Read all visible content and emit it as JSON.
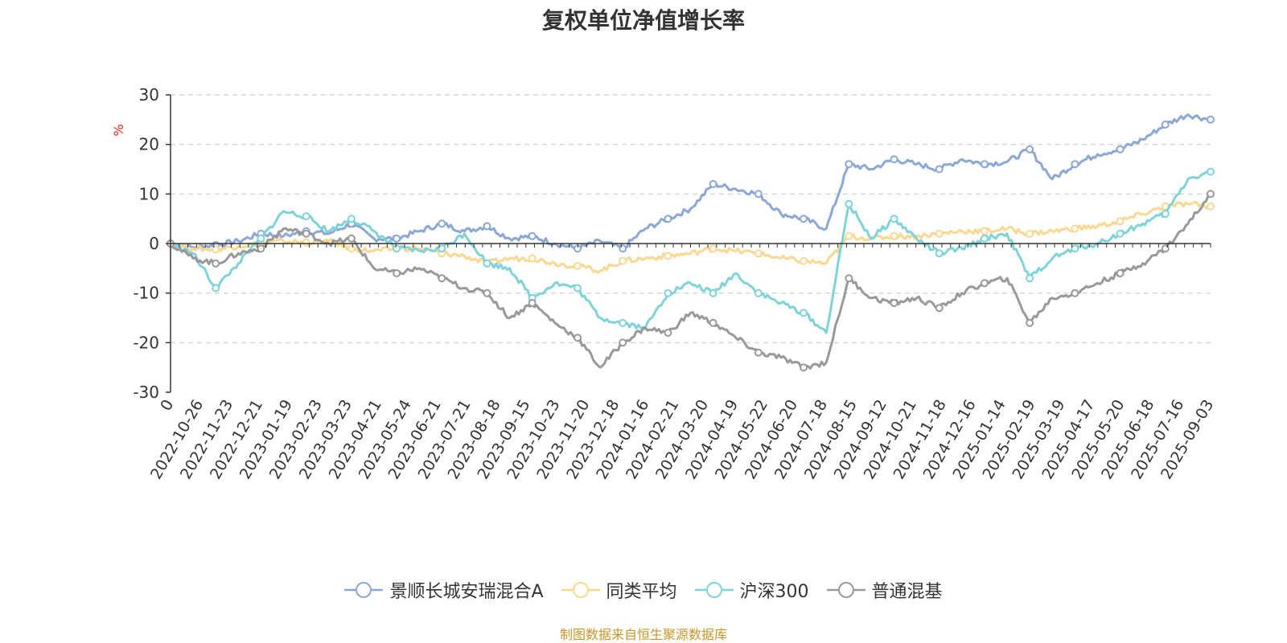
{
  "title": "复权单位净值增长率",
  "ylabel": "%",
  "source_note": "制图数据来自恒生聚源数据库",
  "colors": {
    "axis": "#333333",
    "grid": "#cccccc",
    "ylabel": "#e02020",
    "source": "#c8952a"
  },
  "chart_data": {
    "type": "line",
    "title": "复权单位净值增长率",
    "ylabel": "%",
    "ylim": [
      -30,
      30
    ],
    "y_ticks": [
      30,
      20,
      10,
      0,
      -10,
      -20,
      -30
    ],
    "x_labels": [
      "0",
      "2022-10-26",
      "2022-11-23",
      "2022-12-21",
      "2023-01-19",
      "2023-02-23",
      "2023-03-23",
      "2023-04-21",
      "2023-05-24",
      "2023-06-21",
      "2023-07-21",
      "2023-08-18",
      "2023-09-15",
      "2023-10-23",
      "2023-11-20",
      "2023-12-18",
      "2024-01-16",
      "2024-02-21",
      "2024-03-20",
      "2024-04-19",
      "2024-05-22",
      "2024-06-20",
      "2024-07-18",
      "2024-08-15",
      "2024-09-12",
      "2024-10-21",
      "2024-11-18",
      "2024-12-16",
      "2025-01-14",
      "2025-02-19",
      "2025-03-19",
      "2025-04-17",
      "2025-05-20",
      "2025-06-18",
      "2025-07-16",
      "2025-09-03"
    ],
    "grid": true,
    "legend_position": "bottom",
    "series": [
      {
        "name": "景顺长城安瑞混合A",
        "color": "#8ba7d6",
        "values": [
          0,
          -0.8,
          -0.3,
          0.5,
          2,
          1.5,
          2.5,
          2,
          4,
          1,
          1,
          2.5,
          4,
          2.5,
          3.5,
          1,
          1.5,
          0,
          -1,
          0.5,
          -1,
          3,
          5,
          7,
          12,
          11,
          10,
          6,
          5,
          3,
          16,
          15,
          17,
          16,
          15,
          17,
          16,
          16.5,
          19,
          13,
          16,
          18,
          19,
          21,
          24,
          26,
          25
        ]
      },
      {
        "name": "同类平均",
        "color": "#fcd792",
        "values": [
          0,
          -1,
          -1.2,
          -0.5,
          0,
          0.5,
          0.2,
          0.5,
          -1,
          -1.5,
          -1,
          -1,
          -2,
          -2.5,
          -4,
          -3,
          -3,
          -4,
          -4.5,
          -5.5,
          -3.5,
          -3,
          -2.5,
          -2,
          -1,
          -1.5,
          -2,
          -3,
          -3.5,
          -4,
          1.5,
          1,
          1.5,
          1.5,
          2,
          2.5,
          2.5,
          3,
          2,
          2.5,
          3,
          3.5,
          4.5,
          6,
          7.5,
          8,
          7.5
        ]
      },
      {
        "name": "沪深300",
        "color": "#7ed3d8",
        "values": [
          0,
          -2,
          -9,
          -4,
          1,
          6.5,
          5.5,
          2.5,
          5,
          2.5,
          -1,
          -1.5,
          -1,
          2,
          -4,
          -5,
          -11,
          -8,
          -9,
          -15,
          -16,
          -17,
          -10,
          -8,
          -10,
          -6,
          -10,
          -12,
          -14,
          -18,
          8,
          1,
          5,
          1,
          -2,
          -1,
          1,
          2,
          -7,
          -3,
          -1,
          0,
          2,
          4,
          6,
          13,
          14.5
        ]
      },
      {
        "name": "普通混基",
        "color": "#999999",
        "values": [
          0,
          -3,
          -4,
          -2,
          -1,
          3,
          2,
          0,
          1,
          -5,
          -6,
          -5,
          -7,
          -9,
          -10,
          -15,
          -12,
          -16,
          -19,
          -25,
          -20,
          -17,
          -18,
          -14,
          -16,
          -19,
          -22,
          -23,
          -25,
          -24,
          -7,
          -11,
          -12,
          -11,
          -13,
          -10,
          -8,
          -7,
          -16,
          -11,
          -10,
          -8,
          -6,
          -4,
          -1,
          4,
          10
        ]
      }
    ]
  }
}
